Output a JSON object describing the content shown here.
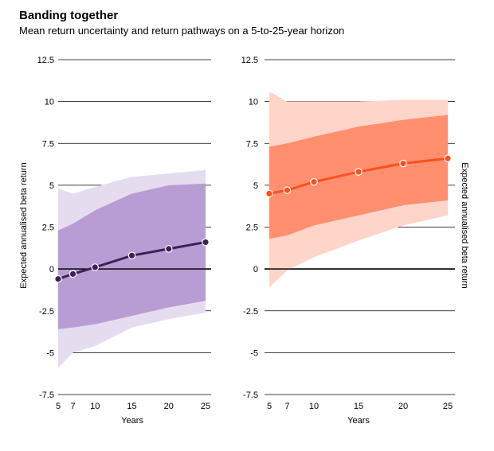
{
  "title": "Banding together",
  "subtitle": "Mean return uncertainty and return pathways on a 5-to-25-year horizon",
  "chart_data": [
    {
      "type": "area",
      "panel": "left",
      "xlabel": "Years",
      "ylabel": "Expected annualised beta return",
      "ylabel_position": "left",
      "x_ticks": [
        5,
        7,
        10,
        15,
        20,
        25
      ],
      "y_ticks": [
        -7.5,
        -5,
        -2.5,
        0,
        2.5,
        5,
        7.5,
        10,
        12.5
      ],
      "y_tick_labels": [
        "-7.5",
        "-5",
        "-2.5",
        "0",
        "2.5",
        "5",
        "7.5",
        "10",
        "12.5"
      ],
      "x_tick_labels": [
        "5",
        "7",
        "10",
        "15",
        "20",
        "25"
      ],
      "xlim": [
        5,
        25
      ],
      "ylim": [
        -7.5,
        12.5
      ],
      "grid": "horizontal",
      "colors": {
        "line": "#3d2156",
        "inner_band": "#b89dd4",
        "outer_band": "#e6dcf0"
      },
      "outer_band": {
        "x": [
          5,
          7,
          10,
          15,
          20,
          25
        ],
        "upper": [
          4.8,
          4.5,
          4.9,
          5.5,
          5.7,
          5.9
        ],
        "lower": [
          -5.9,
          -5.0,
          -4.6,
          -3.5,
          -3.0,
          -2.6
        ]
      },
      "inner_band": {
        "x": [
          5,
          7,
          10,
          15,
          20,
          25
        ],
        "upper": [
          2.3,
          2.7,
          3.5,
          4.5,
          5.0,
          5.1
        ],
        "lower": [
          -3.6,
          -3.5,
          -3.3,
          -2.8,
          -2.3,
          -1.9
        ]
      },
      "mean": {
        "x": [
          5,
          7,
          10,
          15,
          20,
          25
        ],
        "y": [
          -0.6,
          -0.3,
          0.1,
          0.8,
          1.2,
          1.6
        ]
      }
    },
    {
      "type": "area",
      "panel": "right",
      "xlabel": "Years",
      "ylabel": "Expected annualised beta return",
      "ylabel_position": "right",
      "x_ticks": [
        5,
        7,
        10,
        15,
        20,
        25
      ],
      "y_ticks": [
        -7.5,
        -5,
        -2.5,
        0,
        2.5,
        5,
        7.5,
        10,
        12.5
      ],
      "y_tick_labels": [
        "-7.5",
        "-5",
        "-2.5",
        "0",
        "2.5",
        "5",
        "7.5",
        "10",
        "12.5"
      ],
      "x_tick_labels": [
        "5",
        "7",
        "10",
        "15",
        "20",
        "25"
      ],
      "xlim": [
        5,
        25
      ],
      "ylim": [
        -7.5,
        12.5
      ],
      "grid": "horizontal",
      "colors": {
        "line": "#ff4e1f",
        "inner_band": "#ff8f6e",
        "outer_band": "#ffd5ca"
      },
      "outer_band": {
        "x": [
          5,
          7,
          10,
          15,
          20,
          25
        ],
        "upper": [
          10.6,
          10.0,
          10.0,
          10.0,
          10.1,
          10.1
        ],
        "lower": [
          -1.1,
          -0.1,
          0.7,
          1.7,
          2.6,
          3.2
        ]
      },
      "inner_band": {
        "x": [
          5,
          7,
          10,
          15,
          20,
          25
        ],
        "upper": [
          7.3,
          7.5,
          7.9,
          8.5,
          8.9,
          9.2
        ],
        "lower": [
          1.8,
          2.0,
          2.6,
          3.2,
          3.8,
          4.1
        ]
      },
      "mean": {
        "x": [
          5,
          7,
          10,
          15,
          20,
          25
        ],
        "y": [
          4.5,
          4.7,
          5.2,
          5.8,
          6.3,
          6.6
        ]
      }
    }
  ]
}
